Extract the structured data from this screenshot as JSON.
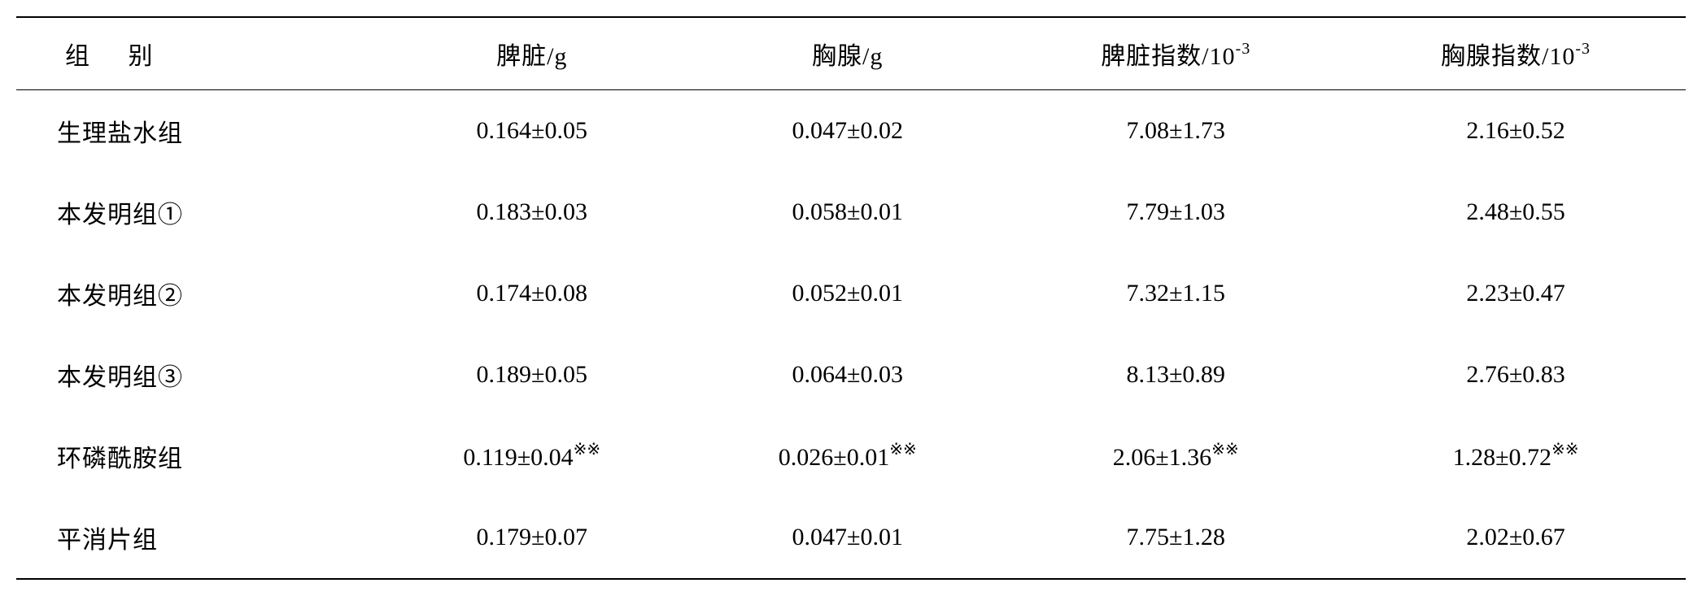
{
  "table": {
    "columns": [
      {
        "label": "组 别",
        "width": "18%"
      },
      {
        "label": "脾脏/g",
        "width": "21%"
      },
      {
        "label": "胸腺/g",
        "width": "21%"
      },
      {
        "label_html": "脾脏指数/10⁻³",
        "label": "脾脏指数/10",
        "sup": "-3",
        "width": "20%"
      },
      {
        "label_html": "胸腺指数/10⁻³",
        "label": "胸腺指数/10",
        "sup": "-3",
        "width": "20%"
      }
    ],
    "rows": [
      {
        "group": "生理盐水组",
        "spleen": "0.164±0.05",
        "thymus": "0.047±0.02",
        "spleen_index": "7.08±1.73",
        "thymus_index": "2.16±0.52"
      },
      {
        "group": "本发明组①",
        "spleen": "0.183±0.03",
        "thymus": "0.058±0.01",
        "spleen_index": "7.79±1.03",
        "thymus_index": "2.48±0.55"
      },
      {
        "group": "本发明组②",
        "spleen": "0.174±0.08",
        "thymus": "0.052±0.01",
        "spleen_index": "7.32±1.15",
        "thymus_index": "2.23±0.47"
      },
      {
        "group": "本发明组③",
        "spleen": "0.189±0.05",
        "thymus": "0.064±0.03",
        "spleen_index": "8.13±0.89",
        "thymus_index": "2.76±0.83"
      },
      {
        "group": "环磷酰胺组",
        "spleen": "0.119±0.04",
        "spleen_sup": "※※",
        "thymus": "0.026±0.01",
        "thymus_sup": "※※",
        "spleen_index": "2.06±1.36",
        "spleen_index_sup": "※※",
        "thymus_index": "1.28±0.72",
        "thymus_index_sup": "※※"
      },
      {
        "group": "平消片组",
        "spleen": "0.179±0.07",
        "thymus": "0.047±0.01",
        "spleen_index": "7.75±1.28",
        "thymus_index": "2.02±0.67"
      }
    ],
    "styles": {
      "border_color": "#000000",
      "background_color": "#ffffff",
      "text_color": "#000000",
      "font_size": 30,
      "sup_font_size": 20,
      "border_top_width": 2,
      "border_bottom_width": 2,
      "header_border_width": 1.5,
      "row_padding_vertical": 28,
      "header_padding_vertical": 22
    }
  }
}
